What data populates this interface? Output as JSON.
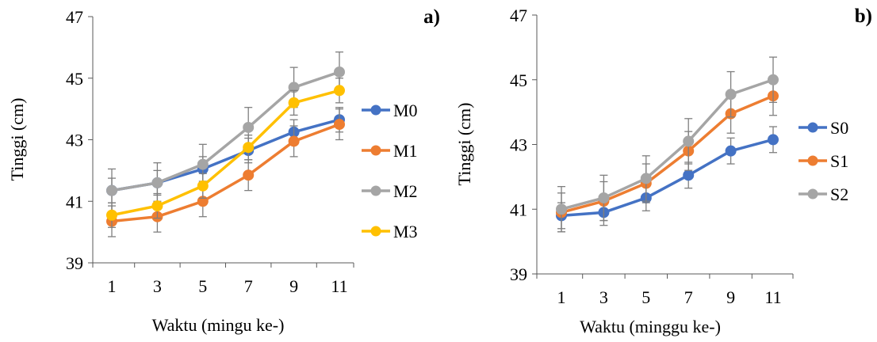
{
  "chart_data": [
    {
      "type": "line",
      "panel_label": "a)",
      "xlabel": "Waktu (mingu ke-)",
      "ylabel": "Tinggi (cm)",
      "x": [
        1,
        3,
        5,
        7,
        9,
        11
      ],
      "ylim": [
        39,
        47
      ],
      "yticks": [
        39,
        41,
        43,
        45,
        47
      ],
      "grid": false,
      "legend_position": "right",
      "series": [
        {
          "name": "M0",
          "color": "#4472C4",
          "values": [
            41.35,
            41.6,
            42.05,
            42.65,
            43.25,
            43.65
          ],
          "error": [
            0.4,
            0.4,
            0.4,
            0.4,
            0.4,
            0.4
          ]
        },
        {
          "name": "M1",
          "color": "#ED7D31",
          "values": [
            40.35,
            40.5,
            41.0,
            41.85,
            42.95,
            43.5
          ],
          "error": [
            0.5,
            0.5,
            0.5,
            0.5,
            0.5,
            0.5
          ]
        },
        {
          "name": "M2",
          "color": "#A5A5A5",
          "values": [
            41.35,
            41.6,
            42.2,
            43.4,
            44.7,
            45.2
          ],
          "error": [
            0.7,
            0.65,
            0.65,
            0.65,
            0.65,
            0.65
          ]
        },
        {
          "name": "M3",
          "color": "#FFC000",
          "values": [
            40.55,
            40.85,
            41.5,
            42.75,
            44.2,
            44.6
          ],
          "error": [
            0.4,
            0.4,
            0.4,
            0.4,
            0.4,
            0.4
          ]
        }
      ]
    },
    {
      "type": "line",
      "panel_label": "b)",
      "xlabel": "Waktu (minggu ke-)",
      "ylabel": "Tinggi (cm)",
      "x": [
        1,
        3,
        5,
        7,
        9,
        11
      ],
      "ylim": [
        39,
        47
      ],
      "yticks": [
        39,
        41,
        43,
        45,
        47
      ],
      "grid": false,
      "legend_position": "right",
      "series": [
        {
          "name": "S0",
          "color": "#4472C4",
          "values": [
            40.8,
            40.9,
            41.35,
            42.05,
            42.8,
            43.15
          ],
          "error": [
            0.4,
            0.4,
            0.4,
            0.4,
            0.4,
            0.4
          ]
        },
        {
          "name": "S1",
          "color": "#ED7D31",
          "values": [
            40.9,
            41.25,
            41.8,
            42.8,
            43.95,
            44.5
          ],
          "error": [
            0.6,
            0.6,
            0.6,
            0.6,
            0.6,
            0.6
          ]
        },
        {
          "name": "S2",
          "color": "#A5A5A5",
          "values": [
            41.0,
            41.35,
            41.95,
            43.1,
            44.55,
            45.0
          ],
          "error": [
            0.7,
            0.7,
            0.7,
            0.7,
            0.7,
            0.7
          ]
        }
      ]
    }
  ]
}
